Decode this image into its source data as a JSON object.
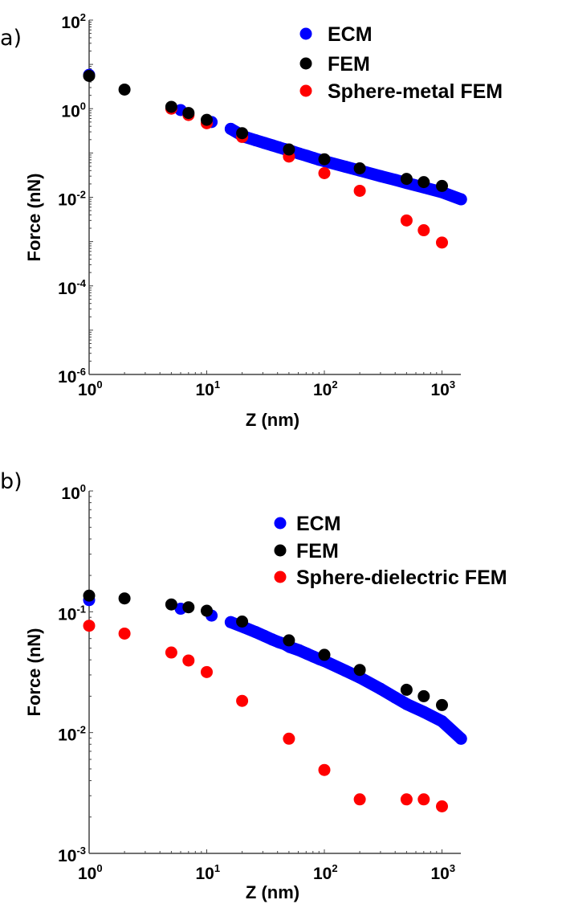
{
  "chart_data": [
    {
      "panel_label": "a)",
      "type": "scatter",
      "xlabel": "Z (nm)",
      "ylabel": "Force (nN)",
      "xscale": "log",
      "yscale": "log",
      "xlim": [
        1,
        1450
      ],
      "ylim": [
        1e-06,
        100
      ],
      "xticks": [
        {
          "base": "10",
          "exp": "0",
          "value": 1
        },
        {
          "base": "10",
          "exp": "1",
          "value": 10
        },
        {
          "base": "10",
          "exp": "2",
          "value": 100
        },
        {
          "base": "10",
          "exp": "3",
          "value": 1000
        }
      ],
      "yticks": [
        {
          "base": "10",
          "exp": "2",
          "value": 100
        },
        {
          "base": "10",
          "exp": "0",
          "value": 1
        },
        {
          "base": "10",
          "exp": "-2",
          "value": 0.01
        },
        {
          "base": "10",
          "exp": "-4",
          "value": 0.0001
        },
        {
          "base": "10",
          "exp": "-6",
          "value": 1e-06
        }
      ],
      "grid": false,
      "legend_position": "top-right",
      "series": [
        {
          "name": "ECM",
          "color": "#0000ff",
          "x": [
            1,
            6,
            11,
            16,
            21,
            26,
            31,
            36,
            41,
            46,
            51,
            61,
            71,
            81,
            91,
            101,
            151,
            201,
            301,
            401,
            501,
            701,
            1001,
            1451
          ],
          "y": [
            5.8,
            0.93,
            0.5,
            0.35,
            0.231,
            0.194,
            0.168,
            0.149,
            0.134,
            0.122,
            0.113,
            0.097,
            0.086,
            0.077,
            0.07,
            0.065,
            0.049,
            0.04,
            0.03,
            0.0247,
            0.021,
            0.0167,
            0.013,
            0.009
          ]
        },
        {
          "name": "FEM",
          "color": "#000000",
          "x": [
            1,
            2,
            5,
            7,
            10,
            20,
            50,
            100,
            200,
            500,
            700,
            1000
          ],
          "y": [
            5.5,
            2.7,
            1.1,
            0.8,
            0.56,
            0.28,
            0.12,
            0.072,
            0.045,
            0.026,
            0.022,
            0.018
          ]
        },
        {
          "name": "Sphere-metal FEM",
          "color": "#ff0000",
          "x": [
            5,
            7,
            10,
            20,
            50,
            100,
            200,
            500,
            700,
            1000
          ],
          "y": [
            1.0,
            0.72,
            0.47,
            0.23,
            0.083,
            0.035,
            0.014,
            0.003,
            0.0018,
            0.00095
          ]
        }
      ]
    },
    {
      "panel_label": "b)",
      "type": "scatter",
      "xlabel": "Z (nm)",
      "ylabel": "Force (nN)",
      "xscale": "log",
      "yscale": "log",
      "xlim": [
        1,
        1450
      ],
      "ylim": [
        0.001,
        1
      ],
      "xticks": [
        {
          "base": "10",
          "exp": "0",
          "value": 1
        },
        {
          "base": "10",
          "exp": "1",
          "value": 10
        },
        {
          "base": "10",
          "exp": "2",
          "value": 100
        },
        {
          "base": "10",
          "exp": "3",
          "value": 1000
        }
      ],
      "yticks": [
        {
          "base": "10",
          "exp": "0",
          "value": 1
        },
        {
          "base": "10",
          "exp": "-1",
          "value": 0.1
        },
        {
          "base": "10",
          "exp": "-2",
          "value": 0.01
        },
        {
          "base": "10",
          "exp": "-3",
          "value": 0.001
        }
      ],
      "grid": false,
      "legend_position": "top-right",
      "series": [
        {
          "name": "ECM",
          "color": "#0000ff",
          "x": [
            1,
            6,
            11,
            16,
            21,
            26,
            31,
            36,
            41,
            46,
            51,
            61,
            71,
            81,
            91,
            101,
            151,
            201,
            301,
            401,
            501,
            701,
            1001,
            1451
          ],
          "y": [
            0.125,
            0.106,
            0.093,
            0.082,
            0.074,
            0.068,
            0.063,
            0.059,
            0.056,
            0.054,
            0.051,
            0.048,
            0.045,
            0.0425,
            0.0405,
            0.039,
            0.0325,
            0.0285,
            0.023,
            0.0195,
            0.0172,
            0.0148,
            0.0124,
            0.0089
          ]
        },
        {
          "name": "FEM",
          "color": "#000000",
          "x": [
            1,
            2,
            5,
            7,
            10,
            20,
            50,
            100,
            200,
            500,
            700,
            1000
          ],
          "y": [
            0.136,
            0.129,
            0.115,
            0.109,
            0.102,
            0.083,
            0.058,
            0.044,
            0.033,
            0.0226,
            0.02,
            0.0169
          ]
        },
        {
          "name": "Sphere-dielectric FEM",
          "color": "#ff0000",
          "x": [
            1,
            2,
            5,
            7,
            10,
            20,
            50,
            100,
            200,
            500,
            700,
            1000
          ],
          "y": [
            0.0766,
            0.066,
            0.046,
            0.0395,
            0.0317,
            0.0183,
            0.0089,
            0.0049,
            0.0028,
            0.0028,
            0.0028,
            0.00245
          ]
        }
      ]
    }
  ]
}
